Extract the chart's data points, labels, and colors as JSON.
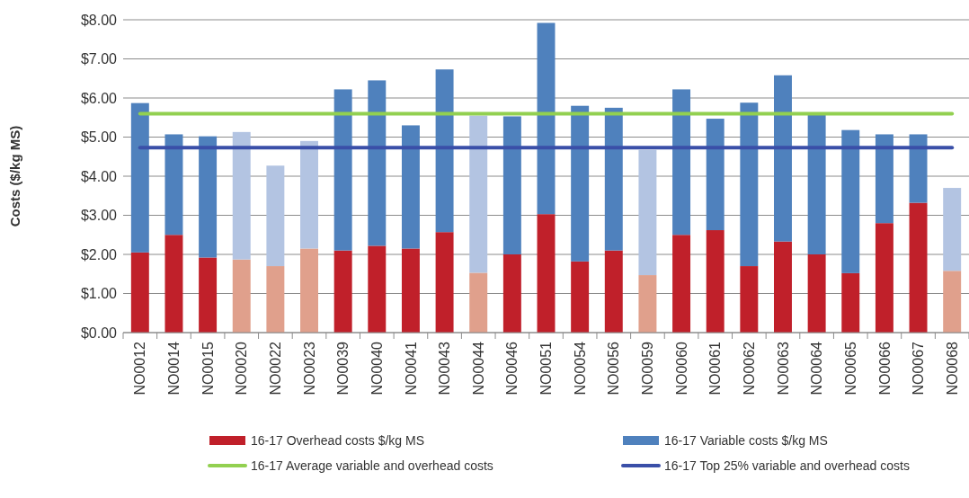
{
  "chart_data": {
    "type": "bar",
    "stacked": true,
    "ylabel": "Costs ($/kg MS)",
    "categories": [
      "NO0012",
      "NO0014",
      "NO0015",
      "NO0020",
      "NO0022",
      "NO0023",
      "NO0039",
      "NO0040",
      "NO0041",
      "NO0043",
      "NO0044",
      "NO0046",
      "NO0051",
      "NO0054",
      "NO0056",
      "NO0059",
      "NO0060",
      "NO0061",
      "NO0062",
      "NO0063",
      "NO0064",
      "NO0065",
      "NO0066",
      "NO0067",
      "NO0068"
    ],
    "series": [
      {
        "name": "16-17 Overhead costs $/kg MS",
        "color": "#c0202a",
        "colors": [
          "#c0202a",
          "#c0202a",
          "#c0202a",
          "#e0a08c",
          "#e0a08c",
          "#e0a08c",
          "#c0202a",
          "#c0202a",
          "#c0202a",
          "#c0202a",
          "#e0a08c",
          "#c0202a",
          "#c0202a",
          "#c0202a",
          "#c0202a",
          "#e0a08c",
          "#c0202a",
          "#c0202a",
          "#c0202a",
          "#c0202a",
          "#c0202a",
          "#c0202a",
          "#c0202a",
          "#c0202a",
          "#e0a08c"
        ],
        "values": [
          2.05,
          2.5,
          1.92,
          1.87,
          1.7,
          2.15,
          2.1,
          2.22,
          2.15,
          2.57,
          1.53,
          2.0,
          3.03,
          1.82,
          2.1,
          1.47,
          2.5,
          2.62,
          1.7,
          2.33,
          2.0,
          1.52,
          2.8,
          3.32,
          1.58
        ]
      },
      {
        "name": "16-17 Variable costs $/kg MS",
        "color": "#4f81bd",
        "colors": [
          "#4f81bd",
          "#4f81bd",
          "#4f81bd",
          "#b3c4e2",
          "#b3c4e2",
          "#b3c4e2",
          "#4f81bd",
          "#4f81bd",
          "#4f81bd",
          "#4f81bd",
          "#b3c4e2",
          "#4f81bd",
          "#4f81bd",
          "#4f81bd",
          "#4f81bd",
          "#b3c4e2",
          "#4f81bd",
          "#4f81bd",
          "#4f81bd",
          "#4f81bd",
          "#4f81bd",
          "#4f81bd",
          "#4f81bd",
          "#4f81bd",
          "#b3c4e2"
        ],
        "values": [
          3.82,
          2.57,
          3.1,
          3.26,
          2.57,
          2.75,
          4.12,
          4.23,
          3.15,
          4.16,
          4.02,
          3.53,
          4.89,
          3.98,
          3.65,
          3.2,
          3.72,
          2.85,
          4.18,
          4.25,
          3.63,
          3.66,
          2.27,
          1.75,
          2.12
        ]
      },
      {
        "name": "16-17 Average variable and overhead costs",
        "type": "line",
        "color": "#92d050",
        "values": [
          5.6,
          5.6,
          5.6,
          5.6,
          5.6,
          5.6,
          5.6,
          5.6,
          5.6,
          5.6,
          5.6,
          5.6,
          5.6,
          5.6,
          5.6,
          5.6,
          5.6,
          5.6,
          5.6,
          5.6,
          5.6,
          5.6,
          5.6,
          5.6,
          5.6
        ]
      },
      {
        "name": "16-17 Top 25% variable and overhead costs",
        "type": "line",
        "color": "#3a4fa8",
        "values": [
          4.73,
          4.73,
          4.73,
          4.73,
          4.73,
          4.73,
          4.73,
          4.73,
          4.73,
          4.73,
          4.73,
          4.73,
          4.73,
          4.73,
          4.73,
          4.73,
          4.73,
          4.73,
          4.73,
          4.73,
          4.73,
          4.73,
          4.73,
          4.73,
          4.73
        ]
      }
    ],
    "ylim": [
      0,
      8
    ],
    "yticks": [
      {
        "value": 0,
        "label": "$0.00"
      },
      {
        "value": 1,
        "label": "$1.00"
      },
      {
        "value": 2,
        "label": "$2.00"
      },
      {
        "value": 3,
        "label": "$3.00"
      },
      {
        "value": 4,
        "label": "$4.00"
      },
      {
        "value": 5,
        "label": "$5.00"
      },
      {
        "value": 6,
        "label": "$6.00"
      },
      {
        "value": 7,
        "label": "$7.00"
      },
      {
        "value": 8,
        "label": "$8.00"
      }
    ],
    "grid": "y",
    "legend": "bottom"
  }
}
